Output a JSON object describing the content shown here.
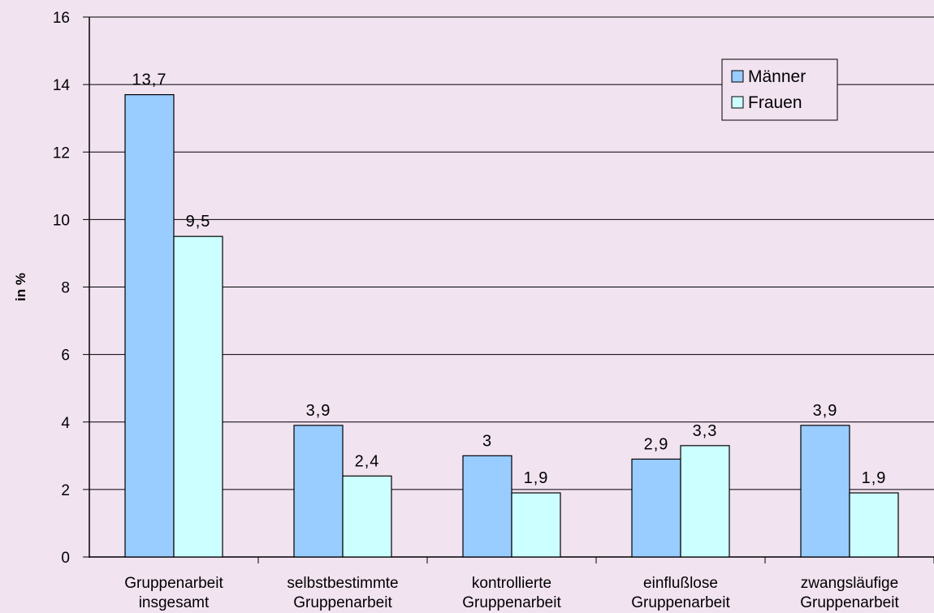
{
  "chart_data": {
    "type": "bar",
    "title": "",
    "xlabel": "",
    "ylabel": "in %",
    "ylim": [
      0,
      16
    ],
    "yticks": [
      0,
      2,
      4,
      6,
      8,
      10,
      12,
      14,
      16
    ],
    "grid": true,
    "legend_position": "top-right",
    "categories": [
      [
        "Gruppenarbeit",
        "insgesamt"
      ],
      [
        "selbstbestimmte",
        "Gruppenarbeit"
      ],
      [
        "kontrollierte",
        "Gruppenarbeit"
      ],
      [
        "einflußlose",
        "Gruppenarbeit"
      ],
      [
        "zwangsläufige",
        "Gruppenarbeit"
      ]
    ],
    "series": [
      {
        "name": "Männer",
        "color": "#99CCFF",
        "values": [
          13.7,
          3.9,
          3,
          2.9,
          3.9
        ],
        "labels": [
          "13,7",
          "3,9",
          "3",
          "2,9",
          "3,9"
        ]
      },
      {
        "name": "Frauen",
        "color": "#CCFFFF",
        "values": [
          9.5,
          2.4,
          1.9,
          3.3,
          1.9
        ],
        "labels": [
          "9,5",
          "2,4",
          "1,9",
          "3,3",
          "1,9"
        ]
      }
    ]
  },
  "colors": {
    "background": "#F2E3F1",
    "grid": "#000000",
    "bar_outline": "#000000"
  }
}
